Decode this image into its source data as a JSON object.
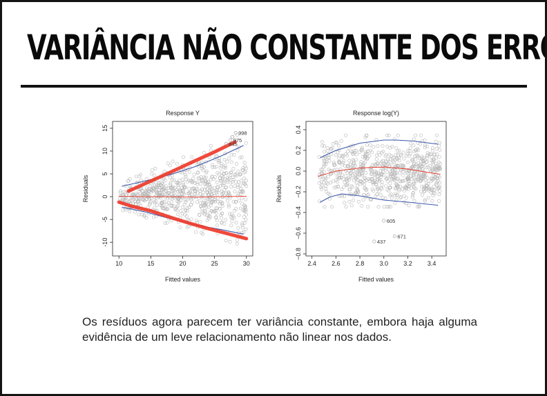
{
  "slide": {
    "title": "VARIÂNCIA NÃO CONSTANTE DOS ERROS",
    "caption": "Os resíduos agora parecem ter variância constante, embora haja alguma evidência de um leve relacionamento não linear nos dados."
  },
  "chart_data": [
    {
      "type": "scatter",
      "title": "Response Y",
      "xlabel": "Fitted values",
      "ylabel": "Residuals",
      "xlim": [
        9,
        31
      ],
      "ylim": [
        -13,
        16.5
      ],
      "xticks": [
        10,
        15,
        20,
        25,
        30
      ],
      "yticks": [
        -10,
        -5,
        0,
        5,
        10,
        15
      ],
      "point_color": "#b5b5b5",
      "spread": {
        "x": [
          10,
          30
        ],
        "upper": [
          2.5,
          12.5
        ],
        "lower": [
          -2.5,
          -9.5
        ]
      },
      "point_annotations": [
        {
          "label": "998",
          "x": 28.3,
          "y": 14.0
        },
        {
          "label": "975",
          "x": 27.5,
          "y": 12.4
        },
        {
          "label": "845",
          "x": 26.8,
          "y": 11.6
        }
      ],
      "series": [
        {
          "role": "smooth",
          "color": "#e53525",
          "x": [
            10,
            14,
            18,
            22,
            26,
            30
          ],
          "y": [
            0.1,
            0,
            0,
            -0.1,
            0,
            0.1
          ]
        },
        {
          "role": "envelope",
          "color": "#3a56a8",
          "x": [
            10.5,
            14,
            18,
            22,
            26,
            29.5
          ],
          "y": [
            2.3,
            3.4,
            4.8,
            6.6,
            8.9,
            11.2
          ]
        },
        {
          "role": "envelope",
          "color": "#3a56a8",
          "x": [
            10.5,
            14,
            18,
            22,
            26,
            29.5
          ],
          "y": [
            -2.3,
            -3.3,
            -4.8,
            -6.2,
            -7.2,
            -8.2
          ]
        },
        {
          "role": "highlight",
          "color": "#ee3b2b",
          "x": [
            11.5,
            14,
            18,
            22,
            25,
            28.2
          ],
          "y": [
            1.2,
            2.8,
            5.3,
            7.9,
            9.8,
            12.0
          ]
        },
        {
          "role": "highlight",
          "color": "#ee3b2b",
          "x": [
            10,
            12,
            15,
            18,
            21,
            24,
            27,
            30
          ],
          "y": [
            -1.2,
            -2.1,
            -3.1,
            -4.5,
            -5.8,
            -7.0,
            -8.1,
            -9.2
          ]
        }
      ]
    },
    {
      "type": "scatter",
      "title": "Response log(Y)",
      "xlabel": "Fitted values",
      "ylabel": "Residuals",
      "xlim": [
        2.35,
        3.52
      ],
      "ylim": [
        -0.82,
        0.48
      ],
      "xticks": [
        2.4,
        2.6,
        2.8,
        3.0,
        3.2,
        3.4
      ],
      "xtick_labels": [
        "2.4",
        "2.6",
        "2.8",
        "3.0",
        "3.2",
        "3.4"
      ],
      "yticks": [
        -0.8,
        -0.6,
        -0.4,
        -0.2,
        0.0,
        0.2,
        0.4
      ],
      "ytick_labels": [
        "−0.8",
        "−0.6",
        "−0.4",
        "−0.2",
        "0.0",
        "0.2",
        "0.4"
      ],
      "point_color": "#b5b5b5",
      "spread": {
        "x": [
          2.45,
          3.47
        ],
        "upper": [
          0.3,
          0.3
        ],
        "lower": [
          -0.3,
          -0.3
        ]
      },
      "point_annotations": [
        {
          "label": "605",
          "x": 3.0,
          "y": -0.48
        },
        {
          "label": "671",
          "x": 3.09,
          "y": -0.63
        },
        {
          "label": "437",
          "x": 2.92,
          "y": -0.68
        }
      ],
      "series": [
        {
          "role": "smooth",
          "color": "#e53525",
          "x": [
            2.45,
            2.6,
            2.8,
            3.0,
            3.2,
            3.35,
            3.47
          ],
          "y": [
            -0.05,
            0.0,
            0.03,
            0.04,
            0.02,
            -0.01,
            -0.03
          ]
        },
        {
          "role": "envelope",
          "color": "#3a56a8",
          "x": [
            2.47,
            2.6,
            2.8,
            3.0,
            3.1,
            3.25,
            3.45
          ],
          "y": [
            0.13,
            0.2,
            0.27,
            0.3,
            0.3,
            0.29,
            0.26
          ]
        },
        {
          "role": "envelope",
          "color": "#3a56a8",
          "x": [
            2.47,
            2.55,
            2.65,
            2.8,
            3.0,
            3.2,
            3.45
          ],
          "y": [
            -0.3,
            -0.25,
            -0.22,
            -0.24,
            -0.28,
            -0.3,
            -0.33
          ]
        }
      ]
    }
  ]
}
